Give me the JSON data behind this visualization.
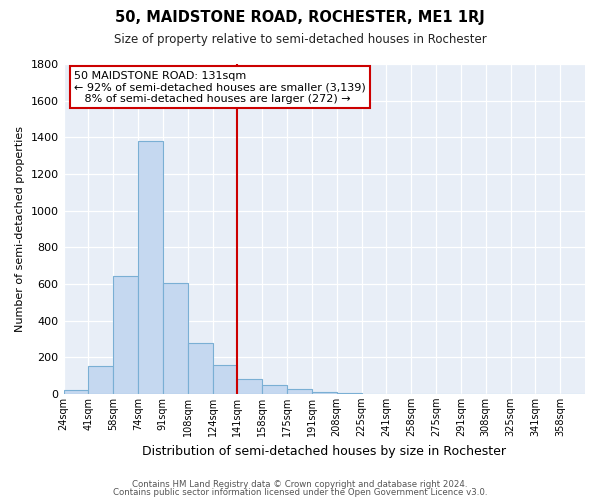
{
  "title": "50, MAIDSTONE ROAD, ROCHESTER, ME1 1RJ",
  "subtitle": "Size of property relative to semi-detached houses in Rochester",
  "xlabel": "Distribution of semi-detached houses by size in Rochester",
  "ylabel": "Number of semi-detached properties",
  "bar_values": [
    20,
    150,
    645,
    1380,
    605,
    280,
    155,
    80,
    50,
    25,
    10,
    5,
    2,
    1,
    1,
    1,
    1,
    1,
    0,
    0,
    2
  ],
  "bin_labels": [
    "24sqm",
    "41sqm",
    "58sqm",
    "74sqm",
    "91sqm",
    "108sqm",
    "124sqm",
    "141sqm",
    "158sqm",
    "175sqm",
    "191sqm",
    "208sqm",
    "225sqm",
    "241sqm",
    "258sqm",
    "275sqm",
    "291sqm",
    "308sqm",
    "325sqm",
    "341sqm",
    "358sqm"
  ],
  "bar_color": "#c5d8f0",
  "bar_edge_color": "#7aafd4",
  "vline_color": "#cc0000",
  "annotation_line1": "50 MAIDSTONE ROAD: 131sqm",
  "annotation_line2": "← 92% of semi-detached houses are smaller (3,139)",
  "annotation_line3": "   8% of semi-detached houses are larger (272) →",
  "ylim": [
    0,
    1800
  ],
  "yticks": [
    0,
    200,
    400,
    600,
    800,
    1000,
    1200,
    1400,
    1600,
    1800
  ],
  "footer_line1": "Contains HM Land Registry data © Crown copyright and database right 2024.",
  "footer_line2": "Contains public sector information licensed under the Open Government Licence v3.0.",
  "fig_bg_color": "#ffffff",
  "plot_bg_color": "#e8eef7"
}
